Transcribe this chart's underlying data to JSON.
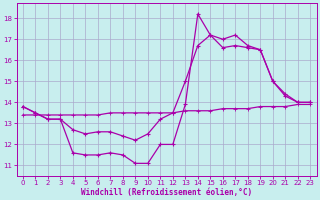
{
  "xlabel": "Windchill (Refroidissement éolien,°C)",
  "bg_color": "#c8eeee",
  "grid_color": "#aaaacc",
  "line_color": "#aa00aa",
  "ylim": [
    10.5,
    18.7
  ],
  "xlim": [
    -0.5,
    23.5
  ],
  "yticks": [
    11,
    12,
    13,
    14,
    15,
    16,
    17,
    18
  ],
  "xticks": [
    0,
    1,
    2,
    3,
    4,
    5,
    6,
    7,
    8,
    9,
    10,
    11,
    12,
    13,
    14,
    15,
    16,
    17,
    18,
    19,
    20,
    21,
    22,
    23
  ],
  "line1_x": [
    0,
    1,
    2,
    3,
    4,
    5,
    6,
    7,
    8,
    9,
    10,
    11,
    12,
    13,
    14,
    15,
    16,
    17,
    18,
    19,
    20,
    21,
    22,
    23
  ],
  "line1_y": [
    13.8,
    13.5,
    13.2,
    13.2,
    11.6,
    11.5,
    11.5,
    11.6,
    11.5,
    11.1,
    11.1,
    12.0,
    12.0,
    13.9,
    18.2,
    17.2,
    17.0,
    17.2,
    16.7,
    16.5,
    15.0,
    14.3,
    14.0,
    14.0
  ],
  "line2_x": [
    0,
    1,
    2,
    3,
    4,
    5,
    6,
    7,
    8,
    9,
    10,
    11,
    12,
    13,
    14,
    15,
    16,
    17,
    18,
    19,
    20,
    21,
    22,
    23
  ],
  "line2_y": [
    13.8,
    13.5,
    13.2,
    13.2,
    12.7,
    12.5,
    12.6,
    12.6,
    12.4,
    12.2,
    12.5,
    13.2,
    13.5,
    15.0,
    16.7,
    17.2,
    16.6,
    16.7,
    16.6,
    16.5,
    15.0,
    14.4,
    14.0,
    14.0
  ],
  "line3_x": [
    0,
    1,
    2,
    3,
    4,
    5,
    6,
    7,
    8,
    9,
    10,
    11,
    12,
    13,
    14,
    15,
    16,
    17,
    18,
    19,
    20,
    21,
    22,
    23
  ],
  "line3_y": [
    13.4,
    13.4,
    13.4,
    13.4,
    13.4,
    13.4,
    13.4,
    13.5,
    13.5,
    13.5,
    13.5,
    13.5,
    13.5,
    13.6,
    13.6,
    13.6,
    13.7,
    13.7,
    13.7,
    13.8,
    13.8,
    13.8,
    13.9,
    13.9
  ]
}
